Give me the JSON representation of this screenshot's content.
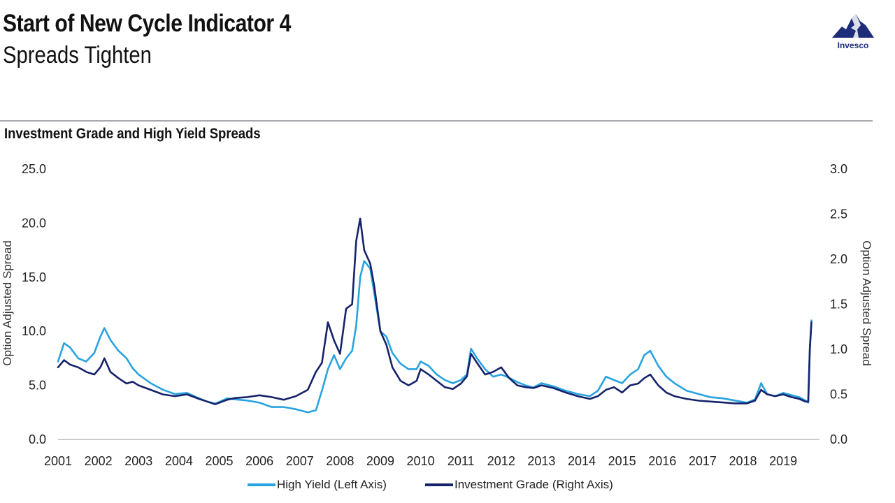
{
  "header": {
    "title": "Start of New Cycle Indicator 4",
    "subtitle": "Spreads Tighten",
    "brand": "Invesco",
    "brand_icon": "invesco-mountain-logo"
  },
  "colors": {
    "high_yield": "#29a3e0",
    "investment_grade": "#16236b",
    "rule": "#a7a9ac"
  },
  "chart_data": {
    "type": "line",
    "title": "Investment Grade and High Yield Spreads",
    "ylabel_left": "Option Adjusted Spread",
    "ylabel_right": "Option Adjusted Spread",
    "ylim_left": [
      0,
      25
    ],
    "ylim_right": [
      0,
      3
    ],
    "xlim": [
      2001,
      2019.9
    ],
    "yticks_left": [
      "0.0",
      "5.0",
      "10.0",
      "15.0",
      "20.0",
      "25.0"
    ],
    "yticks_right": [
      "0.0",
      "0.5",
      "1.0",
      "1.5",
      "2.0",
      "2.5",
      "3.0"
    ],
    "xticks": [
      "2001",
      "2002",
      "2003",
      "2004",
      "2005",
      "2006",
      "2007",
      "2008",
      "2009",
      "2010",
      "2011",
      "2012",
      "2013",
      "2014",
      "2015",
      "2016",
      "2017",
      "2018",
      "2019"
    ],
    "grid": false,
    "legend_position": "bottom-center",
    "series": [
      {
        "name": "High Yield (Left Axis)",
        "axis": "left",
        "x": [
          2001.0,
          2001.15,
          2001.3,
          2001.5,
          2001.7,
          2001.9,
          2002.05,
          2002.15,
          2002.3,
          2002.5,
          2002.7,
          2002.85,
          2003.0,
          2003.3,
          2003.6,
          2003.9,
          2004.2,
          2004.5,
          2004.7,
          2004.9,
          2005.2,
          2005.4,
          2005.7,
          2006.0,
          2006.3,
          2006.6,
          2006.9,
          2007.2,
          2007.4,
          2007.55,
          2007.7,
          2007.85,
          2008.0,
          2008.15,
          2008.3,
          2008.4,
          2008.5,
          2008.6,
          2008.75,
          2008.85,
          2009.0,
          2009.15,
          2009.3,
          2009.5,
          2009.7,
          2009.9,
          2010.0,
          2010.2,
          2010.4,
          2010.6,
          2010.8,
          2011.0,
          2011.15,
          2011.25,
          2011.4,
          2011.6,
          2011.8,
          2012.0,
          2012.2,
          2012.4,
          2012.6,
          2012.8,
          2013.0,
          2013.3,
          2013.6,
          2013.9,
          2014.2,
          2014.4,
          2014.6,
          2014.8,
          2015.0,
          2015.2,
          2015.4,
          2015.55,
          2015.7,
          2015.9,
          2016.1,
          2016.3,
          2016.6,
          2016.9,
          2017.2,
          2017.5,
          2017.8,
          2018.1,
          2018.3,
          2018.45,
          2018.6,
          2018.8,
          2019.0,
          2019.2,
          2019.4,
          2019.55,
          2019.62,
          2019.66,
          2019.7
        ],
        "y": [
          7.2,
          8.9,
          8.5,
          7.5,
          7.2,
          8.0,
          9.5,
          10.3,
          9.2,
          8.2,
          7.5,
          6.6,
          6.0,
          5.2,
          4.6,
          4.2,
          4.3,
          3.8,
          3.5,
          3.3,
          3.8,
          3.7,
          3.6,
          3.4,
          3.0,
          3.0,
          2.8,
          2.5,
          2.7,
          4.5,
          6.5,
          7.8,
          6.5,
          7.5,
          8.2,
          10.5,
          15.0,
          16.5,
          15.8,
          13.5,
          10.0,
          9.5,
          8.0,
          7.0,
          6.5,
          6.5,
          7.2,
          6.8,
          6.0,
          5.5,
          5.2,
          5.5,
          6.0,
          8.4,
          7.5,
          6.5,
          5.8,
          6.0,
          5.7,
          5.3,
          5.0,
          4.8,
          5.2,
          4.9,
          4.5,
          4.2,
          4.0,
          4.5,
          5.8,
          5.5,
          5.2,
          6.0,
          6.5,
          7.8,
          8.2,
          6.8,
          5.8,
          5.2,
          4.5,
          4.2,
          3.9,
          3.8,
          3.6,
          3.4,
          3.7,
          5.2,
          4.2,
          4.0,
          4.3,
          4.1,
          3.9,
          3.6,
          3.4,
          8.5,
          11.0
        ]
      },
      {
        "name": "Investment Grade (Right Axis)",
        "axis": "right",
        "x": [
          2001.0,
          2001.15,
          2001.3,
          2001.5,
          2001.7,
          2001.9,
          2002.05,
          2002.15,
          2002.3,
          2002.5,
          2002.7,
          2002.85,
          2003.0,
          2003.3,
          2003.6,
          2003.9,
          2004.2,
          2004.5,
          2004.7,
          2004.9,
          2005.2,
          2005.4,
          2005.7,
          2006.0,
          2006.3,
          2006.6,
          2006.9,
          2007.2,
          2007.4,
          2007.55,
          2007.7,
          2007.85,
          2008.0,
          2008.15,
          2008.3,
          2008.4,
          2008.5,
          2008.6,
          2008.75,
          2008.85,
          2009.0,
          2009.15,
          2009.3,
          2009.5,
          2009.7,
          2009.9,
          2010.0,
          2010.2,
          2010.4,
          2010.6,
          2010.8,
          2011.0,
          2011.15,
          2011.25,
          2011.4,
          2011.6,
          2011.8,
          2012.0,
          2012.2,
          2012.4,
          2012.6,
          2012.8,
          2013.0,
          2013.3,
          2013.6,
          2013.9,
          2014.2,
          2014.4,
          2014.6,
          2014.8,
          2015.0,
          2015.2,
          2015.4,
          2015.55,
          2015.7,
          2015.9,
          2016.1,
          2016.3,
          2016.6,
          2016.9,
          2017.2,
          2017.5,
          2017.8,
          2018.1,
          2018.3,
          2018.45,
          2018.6,
          2018.8,
          2019.0,
          2019.2,
          2019.4,
          2019.55,
          2019.62,
          2019.66,
          2019.7
        ],
        "y": [
          0.8,
          0.88,
          0.83,
          0.8,
          0.75,
          0.72,
          0.8,
          0.9,
          0.75,
          0.68,
          0.62,
          0.64,
          0.6,
          0.55,
          0.5,
          0.48,
          0.5,
          0.45,
          0.42,
          0.39,
          0.44,
          0.46,
          0.47,
          0.49,
          0.47,
          0.44,
          0.48,
          0.55,
          0.75,
          0.85,
          1.3,
          1.1,
          0.95,
          1.45,
          1.5,
          2.2,
          2.45,
          2.1,
          1.95,
          1.7,
          1.2,
          1.05,
          0.8,
          0.65,
          0.6,
          0.65,
          0.78,
          0.72,
          0.65,
          0.58,
          0.56,
          0.62,
          0.7,
          0.95,
          0.85,
          0.72,
          0.75,
          0.8,
          0.68,
          0.6,
          0.58,
          0.57,
          0.6,
          0.57,
          0.52,
          0.48,
          0.45,
          0.48,
          0.55,
          0.58,
          0.52,
          0.6,
          0.62,
          0.68,
          0.72,
          0.6,
          0.52,
          0.48,
          0.45,
          0.43,
          0.42,
          0.41,
          0.4,
          0.4,
          0.43,
          0.55,
          0.5,
          0.48,
          0.5,
          0.47,
          0.45,
          0.42,
          0.42,
          1.0,
          1.3
        ]
      }
    ]
  }
}
